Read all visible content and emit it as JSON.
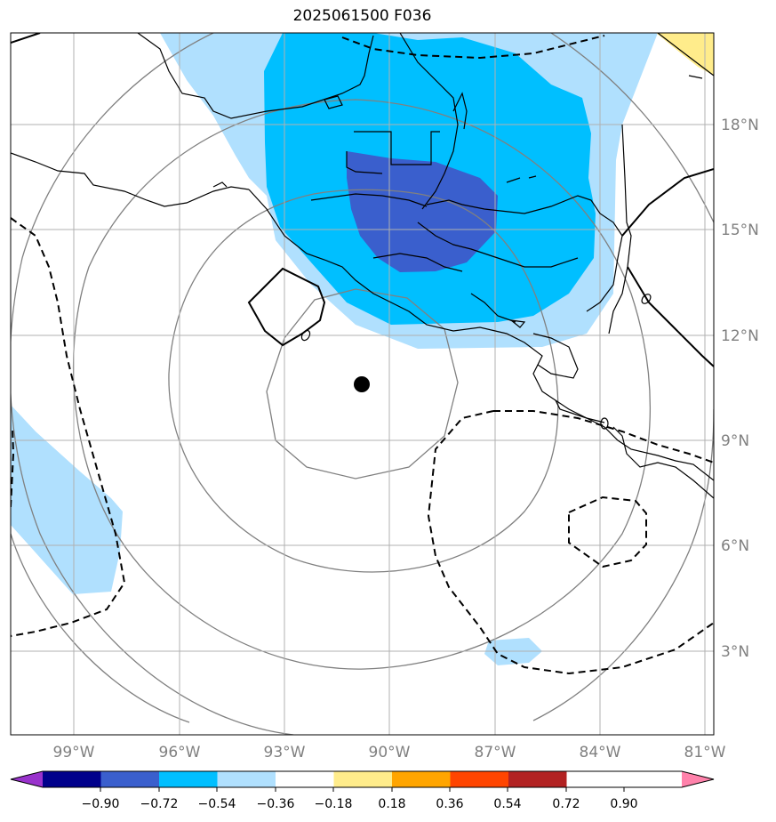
{
  "map": {
    "title": "2025061500 F036",
    "longitude_labels": [
      "99°W",
      "96°W",
      "93°W",
      "90°W",
      "87°W",
      "84°W",
      "81°W"
    ],
    "latitude_labels": [
      "18°N",
      "15°N",
      "12°N",
      "9°N",
      "6°N",
      "3°N"
    ],
    "center_marker": {
      "lon": -90.7,
      "lat": 10.6
    }
  },
  "colorbar": {
    "tick_labels": [
      "−0.90",
      "−0.72",
      "−0.54",
      "−0.36",
      "−0.18",
      "0.18",
      "0.36",
      "0.54",
      "0.72",
      "0.90"
    ],
    "colors": [
      "#9932cc",
      "#00008b",
      "#3a5fcd",
      "#00bfff",
      "#b0e0fe",
      "#ffffff",
      "#ffec8b",
      "#ffa500",
      "#ff4500",
      "#b22222",
      "#ff82ab"
    ]
  }
}
